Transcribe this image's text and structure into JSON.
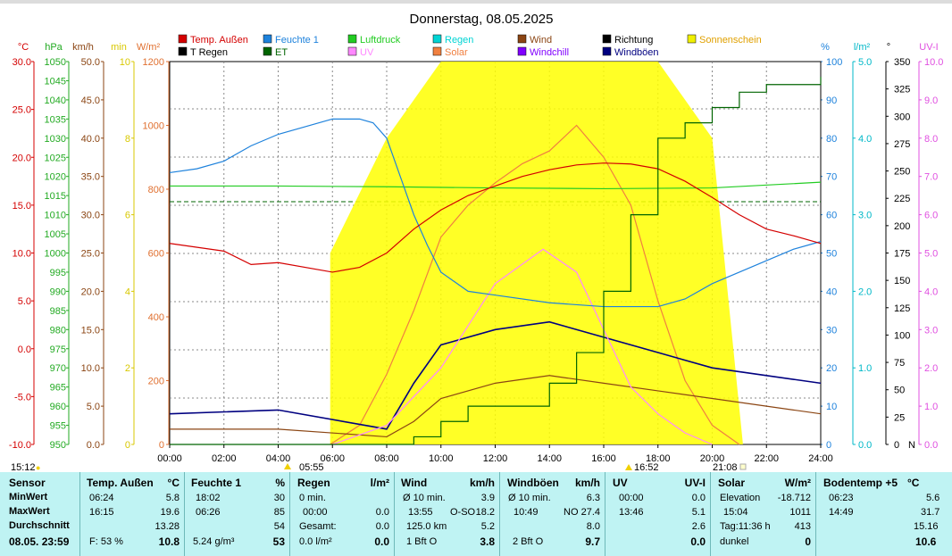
{
  "title": "Donnerstag, 08.05.2025",
  "legend": [
    {
      "label": "Temp. Außen",
      "color": "#d40000"
    },
    {
      "label": "Feuchte 1",
      "color": "#1e82dc"
    },
    {
      "label": "Luftdruck",
      "color": "#22cc22"
    },
    {
      "label": "Regen",
      "color": "#00d4d4"
    },
    {
      "label": "Wind",
      "color": "#8b4513"
    },
    {
      "label": "Richtung",
      "color": "#000000"
    },
    {
      "label": "Sonnenschein",
      "color": "#f0f000"
    },
    {
      "label": "T Regen",
      "color": "#000000"
    },
    {
      "label": "ET",
      "color": "#006400"
    },
    {
      "label": "UV",
      "color": "#ff88ff"
    },
    {
      "label": "Solar",
      "color": "#f08040"
    },
    {
      "label": "Windchill",
      "color": "#8000ff"
    },
    {
      "label": "Windböen",
      "color": "#000080"
    }
  ],
  "axis_units": {
    "temp": "°C",
    "hpa": "hPa",
    "kmh": "km/h",
    "min": "min",
    "wm2": "W/m²",
    "pct": "%",
    "lm2": "l/m²",
    "deg": "°",
    "uv": "UV-I"
  },
  "axes": {
    "temp": {
      "color": "#d40000",
      "ticks": [
        "30.0",
        "25.0",
        "20.0",
        "15.0",
        "10.0",
        "5.0",
        "0.0",
        "-5.0",
        "-10.0"
      ]
    },
    "hpa": {
      "color": "#22aa22",
      "ticks": [
        "1050",
        "1045",
        "1040",
        "1035",
        "1030",
        "1025",
        "1020",
        "1015",
        "1010",
        "1005",
        "1000",
        "995",
        "990",
        "985",
        "980",
        "975",
        "970",
        "965",
        "960",
        "955",
        "950"
      ]
    },
    "kmh": {
      "color": "#8b4513",
      "ticks": [
        "50.0",
        "45.0",
        "40.0",
        "35.0",
        "30.0",
        "25.0",
        "20.0",
        "15.0",
        "10.0",
        "5.0",
        "0.0"
      ]
    },
    "min": {
      "color": "#d8c800",
      "ticks": [
        "10",
        "8",
        "6",
        "4",
        "2",
        "0"
      ]
    },
    "wm2": {
      "color": "#e07030",
      "ticks": [
        "1200",
        "1000",
        "800",
        "600",
        "400",
        "200",
        "0"
      ]
    },
    "pct": {
      "color": "#1e82dc",
      "ticks": [
        "100",
        "90",
        "80",
        "70",
        "60",
        "50",
        "40",
        "30",
        "20",
        "10",
        "0"
      ]
    },
    "lm2": {
      "color": "#00b8c8",
      "ticks": [
        "5.0",
        "4.0",
        "3.0",
        "2.0",
        "1.0",
        "0.0"
      ]
    },
    "deg": {
      "color": "#000000",
      "ticks": [
        "350",
        "325",
        "300",
        "275",
        "250",
        "225",
        "200",
        "175",
        "150",
        "125",
        "100",
        "75",
        "50",
        "25",
        "0"
      ],
      "bottom_label": "N"
    },
    "uv": {
      "color": "#e050e0",
      "ticks": [
        "10.0",
        "9.0",
        "8.0",
        "7.0",
        "6.0",
        "5.0",
        "4.0",
        "3.0",
        "2.0",
        "1.0",
        "0.0"
      ]
    }
  },
  "x_ticks": [
    "00:00",
    "02:00",
    "04:00",
    "06:00",
    "08:00",
    "10:00",
    "12:00",
    "14:00",
    "16:00",
    "18:00",
    "20:00",
    "22:00",
    "24:00"
  ],
  "time_marks": [
    {
      "label": "15:12",
      "sub": "●"
    },
    {
      "label": "05:55"
    },
    {
      "label": "16:52"
    },
    {
      "label": "21:08"
    }
  ],
  "chart_data": {
    "type": "line",
    "title": "Donnerstag, 08.05.2025",
    "x_range": [
      "00:00",
      "24:00"
    ],
    "grid": true,
    "legend_position": "top",
    "series": [
      {
        "name": "Temp. Außen",
        "axis": "temp",
        "x": [
          "00:00",
          "02:00",
          "03:00",
          "04:00",
          "06:00",
          "07:00",
          "08:00",
          "09:00",
          "10:00",
          "11:00",
          "12:00",
          "13:00",
          "14:00",
          "15:00",
          "16:00",
          "17:00",
          "18:00",
          "19:00",
          "20:00",
          "21:00",
          "22:00",
          "23:00",
          "24:00"
        ],
        "y": [
          11.0,
          10.2,
          8.8,
          9.0,
          8.0,
          8.5,
          10.0,
          12.5,
          14.5,
          16.0,
          17.0,
          18.0,
          18.7,
          19.2,
          19.4,
          19.3,
          18.8,
          17.5,
          15.8,
          14.0,
          12.5,
          11.8,
          11.0
        ]
      },
      {
        "name": "Feuchte 1",
        "axis": "pct",
        "x": [
          "00:00",
          "01:00",
          "02:00",
          "03:00",
          "04:00",
          "05:00",
          "06:00",
          "07:00",
          "07:30",
          "08:00",
          "08:30",
          "09:00",
          "09:30",
          "10:00",
          "11:00",
          "12:00",
          "14:00",
          "16:00",
          "18:00",
          "19:00",
          "20:00",
          "21:00",
          "22:00",
          "23:00",
          "24:00"
        ],
        "y": [
          71,
          72,
          74,
          78,
          81,
          83,
          85,
          85,
          84,
          80,
          70,
          60,
          52,
          45,
          40,
          39,
          37,
          36,
          36,
          38,
          42,
          45,
          48,
          51,
          53
        ]
      },
      {
        "name": "Luftdruck",
        "axis": "hpa",
        "x": [
          "00:00",
          "04:00",
          "08:00",
          "12:00",
          "16:00",
          "20:00",
          "24:00"
        ],
        "y": [
          1017.5,
          1017.5,
          1017.3,
          1017.0,
          1016.8,
          1017.0,
          1018.5
        ]
      },
      {
        "name": "ET",
        "axis": "lm2",
        "x": [
          "00:00",
          "08:00",
          "09:00",
          "10:00",
          "11:00",
          "12:00",
          "13:00",
          "14:00",
          "15:00",
          "16:00",
          "17:00",
          "18:00",
          "19:00",
          "20:00",
          "21:00",
          "22:00",
          "24:00"
        ],
        "y": [
          0.0,
          0.0,
          0.1,
          0.3,
          0.5,
          0.5,
          0.5,
          0.8,
          1.2,
          2.0,
          3.0,
          4.0,
          4.2,
          4.4,
          4.6,
          4.7,
          4.8
        ]
      },
      {
        "name": "Solar",
        "axis": "wm2",
        "x": [
          "05:55",
          "07:00",
          "08:00",
          "09:00",
          "10:00",
          "11:00",
          "12:00",
          "13:00",
          "14:00",
          "15:00",
          "16:00",
          "17:00",
          "18:00",
          "19:00",
          "20:00",
          "21:00"
        ],
        "y": [
          0,
          60,
          220,
          420,
          650,
          750,
          820,
          880,
          920,
          1000,
          900,
          750,
          450,
          200,
          60,
          0
        ]
      },
      {
        "name": "Wind",
        "axis": "kmh",
        "x": [
          "00:00",
          "04:00",
          "08:00",
          "09:00",
          "10:00",
          "12:00",
          "14:00",
          "16:00",
          "18:00",
          "20:00",
          "22:00",
          "24:00"
        ],
        "y": [
          2.0,
          2.0,
          1.0,
          3.0,
          6.0,
          8.0,
          9.0,
          8.0,
          7.0,
          6.0,
          5.0,
          4.0
        ]
      },
      {
        "name": "Windböen",
        "axis": "kmh",
        "x": [
          "00:00",
          "04:00",
          "08:00",
          "09:00",
          "10:00",
          "12:00",
          "14:00",
          "16:00",
          "18:00",
          "20:00",
          "22:00",
          "24:00"
        ],
        "y": [
          4.0,
          4.5,
          2.0,
          8.0,
          13.0,
          15.0,
          16.0,
          14.0,
          12.0,
          10.0,
          9.0,
          8.0
        ]
      },
      {
        "name": "UV",
        "axis": "uv",
        "x": [
          "06:00",
          "08:00",
          "10:00",
          "12:00",
          "13:46",
          "15:00",
          "16:00",
          "17:00",
          "18:00",
          "19:00",
          "20:00"
        ],
        "y": [
          0.0,
          0.5,
          2.0,
          4.2,
          5.1,
          4.5,
          3.0,
          1.5,
          0.8,
          0.3,
          0.0
        ]
      },
      {
        "name": "Sonnenschein",
        "axis": "min",
        "x": [
          "05:55",
          "08:00",
          "10:00",
          "12:00",
          "14:00",
          "16:00",
          "18:00",
          "20:00",
          "21:08"
        ],
        "y": [
          5,
          8,
          10,
          10,
          10,
          10,
          10,
          8,
          0
        ]
      }
    ]
  },
  "panel": {
    "sensor": {
      "header": "Sensor",
      "rows": [
        "MinWert",
        "MaxWert",
        "Durchschnitt",
        "08.05. 23:59"
      ]
    },
    "temp": {
      "header": "Temp. Außen",
      "unit": "°C",
      "min_t": "06:24",
      "min_v": "5.8",
      "max_t": "16:15",
      "max_v": "19.6",
      "avg": "13.28",
      "now_l": "F: 53 %",
      "now_v": "10.8"
    },
    "feuchte": {
      "header": "Feuchte 1",
      "unit": "%",
      "min_t": "18:02",
      "min_v": "30",
      "max_t": "06:26",
      "max_v": "85",
      "avg": "54",
      "now_l": "5.24 g/m³",
      "now_v": "53"
    },
    "regen": {
      "header": "Regen",
      "unit": "l/m²",
      "r1_l": "0 min.",
      "r2_l": "00:00",
      "r2_v": "0.0",
      "r3_l": "Gesamt:",
      "r3_v": "0.0",
      "now_l": "0.0 l/m²",
      "now_v": "0.0"
    },
    "wind": {
      "header": "Wind",
      "unit": "km/h",
      "r1_l": "Ø 10 min.",
      "r1_v": "3.9",
      "r2_l": "13:55",
      "r2_m": "O-SO",
      "r2_v": "18.2",
      "r3_l": "125.0 km",
      "r3_v": "5.2",
      "now_l": "1 Bft O",
      "now_v": "3.8"
    },
    "boeen": {
      "header": "Windböen",
      "unit": "km/h",
      "r1_l": "Ø 10 min.",
      "r1_v": "6.3",
      "r2_l": "10:49",
      "r2_m": "NO",
      "r2_v": "27.4",
      "r3_v": "8.0",
      "now_l": "2 Bft O",
      "now_v": "9.7"
    },
    "uv": {
      "header": "UV",
      "unit": "UV-I",
      "r1_l": "00:00",
      "r1_v": "0.0",
      "r2_l": "13:46",
      "r2_v": "5.1",
      "r3_v": "2.6",
      "now_v": "0.0"
    },
    "solar": {
      "header": "Solar",
      "unit": "W/m²",
      "r1_l": "Elevation",
      "r1_v": "-18.712",
      "r2_l": "15:04",
      "r2_v": "1011",
      "r3_l": "Tag:11:36 h",
      "r3_v": "413",
      "now_l": "dunkel",
      "now_v": "0"
    },
    "boden": {
      "header": "Bodentemp +5",
      "unit": "°C",
      "r1_l": "06:23",
      "r1_v": "5.6",
      "r2_l": "14:49",
      "r2_v": "31.7",
      "r3_v": "15.16",
      "now_v": "10.6"
    }
  }
}
